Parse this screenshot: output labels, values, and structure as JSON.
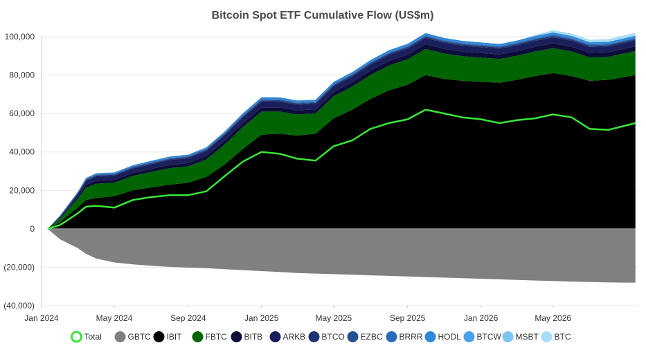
{
  "chart_data": {
    "type": "area",
    "title": "Bitcoin Spot ETF Cumulative Flow (US$m)",
    "xlabel": "",
    "ylabel": "",
    "x_ticks": [
      "Jan 2024",
      "May 2024",
      "Sep 2024",
      "Jan 2025",
      "May 2025",
      "Sep 2025",
      "Jan 2026",
      "May 2026"
    ],
    "y_ticks": [
      "100,000",
      "80,000",
      "60,000",
      "40,000",
      "20,000",
      "0",
      "(20,000)",
      "(40,000)"
    ],
    "y_tick_values": [
      100000,
      80000,
      60000,
      40000,
      20000,
      0,
      -20000,
      -40000
    ],
    "ylim": [
      -40000,
      100000
    ],
    "xlim": [
      "2024-01-01",
      "2026-09-20"
    ],
    "grid": true,
    "legend_position": "bottom",
    "x": [
      "2024-01-11",
      "2024-02-01",
      "2024-03-01",
      "2024-03-15",
      "2024-04-01",
      "2024-05-01",
      "2024-06-01",
      "2024-07-01",
      "2024-08-01",
      "2024-09-01",
      "2024-10-01",
      "2024-11-01",
      "2024-12-01",
      "2025-01-01",
      "2025-02-01",
      "2025-03-01",
      "2025-04-01",
      "2025-05-01",
      "2025-06-01",
      "2025-07-01",
      "2025-08-01",
      "2025-09-01",
      "2025-10-01",
      "2025-11-01",
      "2025-12-01",
      "2026-01-01",
      "2026-02-01",
      "2026-03-01",
      "2026-04-01",
      "2026-05-01",
      "2026-06-01",
      "2026-07-01",
      "2026-08-01",
      "2026-09-15"
    ],
    "total": [
      0,
      2000,
      8000,
      11500,
      12000,
      11000,
      15000,
      16500,
      17500,
      17500,
      19500,
      27500,
      35000,
      40000,
      39000,
      36500,
      35500,
      43000,
      46000,
      52000,
      55000,
      57000,
      62000,
      60000,
      58000,
      57000,
      55000,
      56500,
      57500,
      59500,
      58000,
      52000,
      51500,
      55000
    ],
    "series": [
      {
        "name": "GBTC",
        "color": "#808080",
        "values": [
          0,
          -5500,
          -10000,
          -13000,
          -15500,
          -17500,
          -18500,
          -19200,
          -19800,
          -20200,
          -20500,
          -21000,
          -21500,
          -22000,
          -22500,
          -23000,
          -23300,
          -23600,
          -23900,
          -24200,
          -24500,
          -24800,
          -25100,
          -25400,
          -25700,
          -26000,
          -26300,
          -26600,
          -26900,
          -27200,
          -27500,
          -27700,
          -27900,
          -28000
        ]
      },
      {
        "name": "IBIT",
        "color": "#000000",
        "values": [
          0,
          3500,
          11000,
          15000,
          16000,
          17000,
          20000,
          21500,
          23000,
          24000,
          27000,
          33500,
          41500,
          49000,
          49500,
          48500,
          49500,
          57500,
          62000,
          67500,
          72000,
          75000,
          80000,
          78000,
          77000,
          76500,
          76000,
          77500,
          79500,
          81000,
          79500,
          77000,
          77500,
          80000
        ]
      },
      {
        "name": "FBTC",
        "color": "#006400",
        "values": [
          0,
          2000,
          4500,
          6500,
          7500,
          7000,
          7500,
          8000,
          8500,
          8500,
          9000,
          10500,
          11500,
          12000,
          11500,
          11000,
          10500,
          11500,
          12000,
          12500,
          13000,
          13200,
          13600,
          13200,
          12800,
          12600,
          12400,
          12500,
          12800,
          13000,
          12800,
          12200,
          12000,
          12500
        ]
      },
      {
        "name": "BITB",
        "color": "#0d0d3a",
        "values": [
          0,
          400,
          1000,
          1400,
          1500,
          1500,
          1600,
          1700,
          1750,
          1800,
          1900,
          2000,
          2100,
          2200,
          2200,
          2150,
          2150,
          2250,
          2300,
          2350,
          2400,
          2450,
          2500,
          2450,
          2400,
          2400,
          2350,
          2400,
          2450,
          2500,
          2450,
          2400,
          2400,
          2450
        ]
      },
      {
        "name": "ARKB",
        "color": "#1a1f5c",
        "values": [
          0,
          500,
          1500,
          2100,
          2300,
          2200,
          2300,
          2400,
          2500,
          2500,
          2600,
          2750,
          2900,
          3000,
          2950,
          2900,
          2850,
          2950,
          3000,
          3050,
          3100,
          3150,
          3200,
          3150,
          3100,
          3050,
          3000,
          3050,
          3100,
          3150,
          3100,
          3050,
          3000,
          3050
        ]
      },
      {
        "name": "BTCO",
        "color": "#1e3370",
        "values": [
          0,
          150,
          300,
          400,
          450,
          450,
          450,
          500,
          500,
          500,
          520,
          540,
          560,
          580,
          570,
          560,
          550,
          570,
          580,
          590,
          600,
          610,
          620,
          610,
          600,
          590,
          580,
          590,
          600,
          610,
          600,
          590,
          580,
          590
        ]
      },
      {
        "name": "EZBC",
        "color": "#24508f",
        "values": [
          0,
          150,
          250,
          300,
          320,
          320,
          330,
          340,
          350,
          350,
          360,
          370,
          380,
          390,
          385,
          380,
          375,
          385,
          390,
          395,
          400,
          405,
          410,
          405,
          400,
          395,
          390,
          395,
          400,
          405,
          400,
          395,
          390,
          395
        ]
      },
      {
        "name": "BRRR",
        "color": "#2b6cb8",
        "values": [
          0,
          150,
          250,
          300,
          320,
          320,
          330,
          340,
          350,
          350,
          360,
          370,
          380,
          390,
          385,
          380,
          375,
          385,
          390,
          395,
          400,
          405,
          410,
          405,
          400,
          395,
          390,
          395,
          400,
          405,
          400,
          395,
          390,
          395
        ]
      },
      {
        "name": "HODL",
        "color": "#2f88d8",
        "values": [
          0,
          200,
          350,
          450,
          500,
          500,
          520,
          540,
          560,
          580,
          620,
          700,
          800,
          900,
          880,
          860,
          840,
          880,
          900,
          950,
          1000,
          1050,
          1100,
          1080,
          1060,
          1040,
          1020,
          1040,
          1060,
          1080,
          1060,
          1040,
          1020,
          1040
        ]
      },
      {
        "name": "BTCW",
        "color": "#4aa3e8",
        "values": [
          0,
          50,
          60,
          70,
          70,
          70,
          70,
          70,
          70,
          70,
          70,
          70,
          70,
          70,
          70,
          70,
          70,
          70,
          70,
          70,
          70,
          70,
          70,
          70,
          70,
          70,
          70,
          70,
          70,
          70,
          70,
          70,
          70,
          70
        ]
      },
      {
        "name": "MSBT",
        "color": "#7cc4f2",
        "values": [
          0,
          0,
          0,
          0,
          0,
          0,
          0,
          0,
          0,
          0,
          0,
          0,
          0,
          0,
          0,
          0,
          0,
          0,
          0,
          0,
          0,
          0,
          0,
          0,
          0,
          0,
          0,
          0,
          0,
          0,
          0,
          0,
          0,
          0
        ]
      },
      {
        "name": "BTC",
        "color": "#a6dcf7",
        "values": [
          0,
          0,
          0,
          0,
          0,
          0,
          0,
          0,
          0,
          0,
          0,
          0,
          0,
          0,
          0,
          0,
          0,
          0,
          0,
          0,
          0,
          0,
          0,
          0,
          0,
          0,
          0,
          0,
          500,
          1100,
          1200,
          1250,
          1350,
          1500
        ]
      }
    ],
    "total_color": "#39e639"
  },
  "legend": {
    "items": [
      {
        "label": "Total",
        "color": "#39e639",
        "style": "ring"
      },
      {
        "label": "GBTC",
        "color": "#808080",
        "style": "dot"
      },
      {
        "label": "IBIT",
        "color": "#000000",
        "style": "dot"
      },
      {
        "label": "FBTC",
        "color": "#006400",
        "style": "dot"
      },
      {
        "label": "BITB",
        "color": "#0d0d3a",
        "style": "dot"
      },
      {
        "label": "ARKB",
        "color": "#1a1f5c",
        "style": "dot"
      },
      {
        "label": "BTCO",
        "color": "#1e3370",
        "style": "dot"
      },
      {
        "label": "EZBC",
        "color": "#24508f",
        "style": "dot"
      },
      {
        "label": "BRRR",
        "color": "#2b6cb8",
        "style": "dot"
      },
      {
        "label": "HODL",
        "color": "#2f88d8",
        "style": "dot"
      },
      {
        "label": "BTCW",
        "color": "#4aa3e8",
        "style": "dot"
      },
      {
        "label": "MSBT",
        "color": "#7cc4f2",
        "style": "dot"
      },
      {
        "label": "BTC",
        "color": "#a6dcf7",
        "style": "dot"
      }
    ]
  }
}
